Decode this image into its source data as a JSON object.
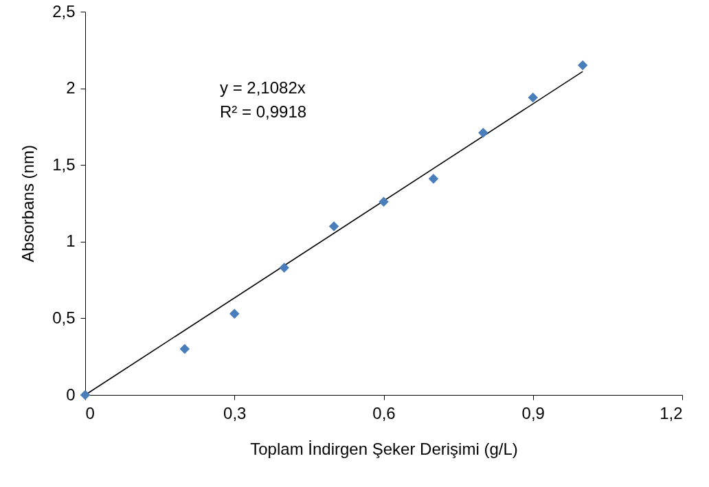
{
  "chart_data": {
    "type": "scatter",
    "xlabel": "Toplam İndirgen Şeker Derişimi (g/L)",
    "ylabel": "Absorbans (nm)",
    "xlim": [
      0,
      1.2
    ],
    "ylim": [
      0,
      2.5
    ],
    "xticks": [
      0,
      {
        "value": 0.3,
        "label": "0,3"
      },
      {
        "value": 0.6,
        "label": "0,6"
      },
      {
        "value": 0.9,
        "label": "0,9"
      },
      {
        "value": 1.2,
        "label": "1,2"
      }
    ],
    "yticks": [
      0,
      {
        "value": 0.5,
        "label": "0,5"
      },
      1,
      {
        "value": 1.5,
        "label": "1,5"
      },
      2,
      {
        "value": 2.5,
        "label": "2,5"
      }
    ],
    "marker": "diamond",
    "grid": false,
    "annotations": [
      "y = 2,1082x",
      "R² = 0,9918"
    ],
    "series": [
      {
        "color": "#4a7ebb",
        "x": [
          0,
          0.2,
          0.3,
          0.4,
          0.5,
          0.6,
          0.7,
          0.8,
          0.9,
          1.0
        ],
        "values": [
          0,
          0.3,
          0.53,
          0.83,
          1.1,
          1.26,
          1.41,
          1.71,
          1.94,
          2.15
        ]
      },
      {
        "type": "line",
        "marker": "none",
        "color": "#000000",
        "x": [
          0,
          1.0
        ],
        "values": [
          0,
          2.11
        ]
      }
    ]
  }
}
